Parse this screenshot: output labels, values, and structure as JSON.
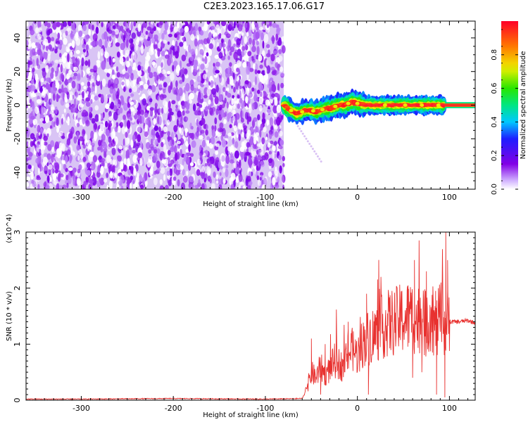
{
  "figure": {
    "title": "C2E3.2023.165.17.06.G17"
  },
  "chart_data": [
    {
      "type": "heatmap",
      "title": "C2E3.2023.165.17.06.G17",
      "xlabel": "Height of straight line (km)",
      "ylabel": "Frequency (Hz)",
      "xlim": [
        -360,
        128
      ],
      "ylim": [
        -50,
        50
      ],
      "x_ticks": [
        -300,
        -200,
        -100,
        0,
        100
      ],
      "x_tick_labels": [
        "-300",
        "-200",
        "-100",
        "0",
        "100"
      ],
      "y_ticks": [
        -40,
        -20,
        0,
        20,
        40
      ],
      "y_tick_labels": [
        "-40",
        "-20",
        "0",
        "20",
        "40"
      ],
      "colorbar": {
        "label": "Normalized spectral amplitude",
        "range": [
          0,
          1
        ],
        "ticks": [
          0.0,
          0.2,
          0.4,
          0.6,
          0.8
        ],
        "tick_labels": [
          "0.0",
          "0.2",
          "0.4",
          "0.6",
          "0.8"
        ],
        "colormap": "rainbow (violet to red)"
      },
      "noise_region_x": [
        -360,
        -80
      ],
      "signal_ridge": {
        "x": [
          -80,
          -75,
          -70,
          -65,
          -60,
          -55,
          -50,
          -45,
          -40,
          -35,
          -30,
          -25,
          -20,
          -15,
          -10,
          -5,
          0,
          10,
          20,
          40,
          60,
          80,
          95,
          128
        ],
        "frequency": [
          0,
          -2,
          -4,
          -5,
          -4,
          -3,
          -3,
          -4,
          -3,
          -2,
          -2,
          -1,
          0,
          0,
          1,
          2,
          1,
          0,
          0,
          0,
          0,
          0,
          0,
          0
        ]
      }
    },
    {
      "type": "line",
      "xlabel": "Height of straight line (km)",
      "ylabel": "SNR (10 * v/v)",
      "scale_label": "(x10^4)",
      "xlim": [
        -360,
        128
      ],
      "ylim": [
        0,
        3
      ],
      "x_ticks": [
        -300,
        -200,
        -100,
        0,
        100
      ],
      "x_tick_labels": [
        "-300",
        "-200",
        "-100",
        "0",
        "100"
      ],
      "y_ticks": [
        0,
        1,
        2,
        3
      ],
      "y_tick_labels": [
        "0",
        "1",
        "2",
        "3"
      ],
      "series": [
        {
          "color": "#e8312f",
          "x": [
            -360,
            -300,
            -200,
            -100,
            -60,
            -55,
            -50,
            -45,
            -40,
            -35,
            -30,
            -25,
            -20,
            -15,
            -10,
            -5,
            0,
            5,
            10,
            20,
            30,
            40,
            50,
            60,
            65,
            70,
            75,
            80,
            85,
            90,
            95,
            100,
            110,
            120,
            128
          ],
          "y": [
            0.02,
            0.02,
            0.03,
            0.02,
            0.03,
            0.2,
            0.5,
            0.4,
            0.6,
            0.45,
            0.55,
            0.7,
            0.65,
            0.6,
            0.85,
            0.9,
            0.8,
            1.0,
            1.1,
            1.2,
            1.35,
            1.4,
            1.45,
            1.5,
            1.4,
            1.55,
            1.3,
            1.6,
            1.2,
            1.5,
            1.35,
            1.4,
            1.4,
            1.42,
            1.38
          ],
          "spikes": [
            {
              "x": -50,
              "y": 1.1
            },
            {
              "x": -35,
              "y": 1.0
            },
            {
              "x": -10,
              "y": 1.4
            },
            {
              "x": 10,
              "y": 1.9
            },
            {
              "x": 55,
              "y": 2.05
            },
            {
              "x": 62,
              "y": 2.5
            },
            {
              "x": 67,
              "y": 2.85
            },
            {
              "x": 75,
              "y": 2.3
            },
            {
              "x": 85,
              "y": 1.95
            },
            {
              "x": 96,
              "y": 3.0
            },
            {
              "x": 98,
              "y": 2.5
            }
          ],
          "dips": [
            {
              "x": -40,
              "y": 0.1
            },
            {
              "x": 12,
              "y": 0.1
            },
            {
              "x": 60,
              "y": 0.4
            },
            {
              "x": 70,
              "y": 0.5
            },
            {
              "x": 86,
              "y": 0.1
            },
            {
              "x": 95,
              "y": 0.05
            }
          ]
        }
      ]
    }
  ]
}
